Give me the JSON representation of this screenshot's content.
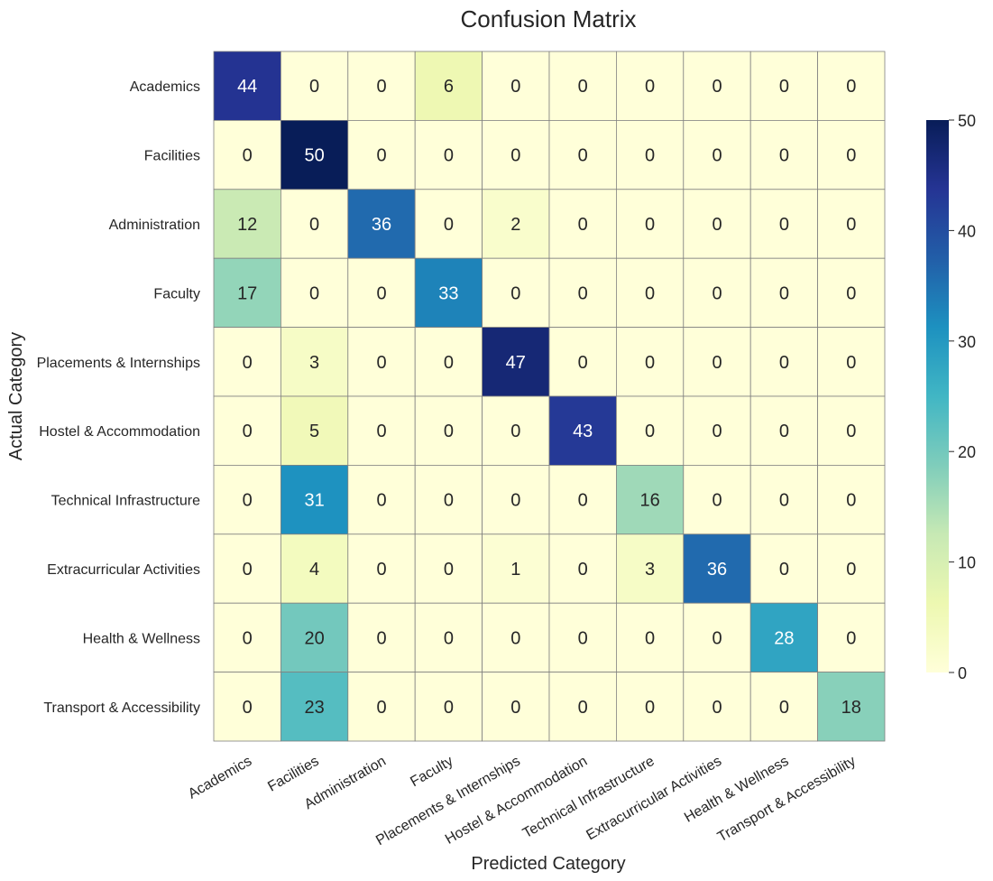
{
  "chart_data": {
    "type": "heatmap",
    "title": "Confusion Matrix",
    "xlabel": "Predicted Category",
    "ylabel": "Actual Category",
    "x_categories": [
      "Academics",
      "Facilities",
      "Administration",
      "Faculty",
      "Placements & Internships",
      "Hostel & Accommodation",
      "Technical Infrastructure",
      "Extracurricular Activities",
      "Health & Wellness",
      "Transport & Accessibility"
    ],
    "y_categories": [
      "Academics",
      "Facilities",
      "Administration",
      "Faculty",
      "Placements & Internships",
      "Hostel & Accommodation",
      "Technical Infrastructure",
      "Extracurricular Activities",
      "Health & Wellness",
      "Transport & Accessibility"
    ],
    "values": [
      [
        44,
        0,
        0,
        6,
        0,
        0,
        0,
        0,
        0,
        0
      ],
      [
        0,
        50,
        0,
        0,
        0,
        0,
        0,
        0,
        0,
        0
      ],
      [
        12,
        0,
        36,
        0,
        2,
        0,
        0,
        0,
        0,
        0
      ],
      [
        17,
        0,
        0,
        33,
        0,
        0,
        0,
        0,
        0,
        0
      ],
      [
        0,
        3,
        0,
        0,
        47,
        0,
        0,
        0,
        0,
        0
      ],
      [
        0,
        5,
        0,
        0,
        0,
        43,
        0,
        0,
        0,
        0
      ],
      [
        0,
        31,
        0,
        0,
        0,
        0,
        16,
        0,
        0,
        0
      ],
      [
        0,
        4,
        0,
        0,
        1,
        0,
        3,
        36,
        0,
        0
      ],
      [
        0,
        20,
        0,
        0,
        0,
        0,
        0,
        0,
        28,
        0
      ],
      [
        0,
        23,
        0,
        0,
        0,
        0,
        0,
        0,
        0,
        18
      ]
    ],
    "colorbar": {
      "min": 0,
      "max": 50,
      "ticks": [
        0,
        10,
        20,
        30,
        40,
        50
      ]
    },
    "colormap": "YlGnBu",
    "colormap_stops": [
      "#ffffd9",
      "#edf8b1",
      "#c7e9b4",
      "#7fcdbb",
      "#41b6c4",
      "#1d91c0",
      "#225ea8",
      "#253494",
      "#081d58"
    ],
    "grid_line_color": "#808080"
  }
}
